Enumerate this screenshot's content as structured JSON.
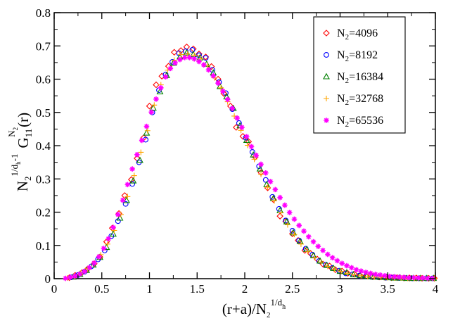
{
  "chart_data": {
    "type": "scatter",
    "title": "",
    "xlabel": {
      "main": "(r+a)/N",
      "sub": "2",
      "sup_main": "1/d",
      "sup_sub": "h"
    },
    "ylabel": {
      "base": "N",
      "base_sub": "2",
      "exp_main": "1/d",
      "exp_sub": "h",
      "exp_tail": "-1",
      "G": "G",
      "G_sub": "11",
      "G_sup": "N",
      "G_sup_sub": "2",
      "tail": "(r)"
    },
    "xlim": [
      0,
      4
    ],
    "ylim": [
      0,
      0.8
    ],
    "x_ticks": [
      0,
      0.5,
      1,
      1.5,
      2,
      2.5,
      3,
      3.5,
      4
    ],
    "x_tick_labels": [
      "0",
      "0.5",
      "1",
      "1.5",
      "2",
      "2.5",
      "3",
      "3.5",
      "4"
    ],
    "y_ticks": [
      0,
      0.1,
      0.2,
      0.3,
      0.4,
      0.5,
      0.6,
      0.7,
      0.8
    ],
    "y_tick_labels": [
      "0",
      "0.1",
      "0.2",
      "0.3",
      "0.4",
      "0.5",
      "0.6",
      "0.7",
      "0.8"
    ],
    "legend_position": "top-right",
    "series": [
      {
        "name": "N2=4096",
        "label_base": "N",
        "label_sub": "2",
        "label_tail": "=4096",
        "marker": "diamond",
        "color": "#ff0000",
        "x": [
          0.16,
          0.22,
          0.29,
          0.35,
          0.42,
          0.48,
          0.55,
          0.61,
          0.68,
          0.74,
          0.81,
          0.87,
          0.94,
          1.0,
          1.07,
          1.13,
          1.2,
          1.26,
          1.33,
          1.39,
          1.46,
          1.52,
          1.59,
          1.65,
          1.72,
          1.78,
          1.85,
          1.91,
          1.98,
          2.04,
          2.11,
          2.17,
          2.24,
          2.3,
          2.37,
          2.43,
          2.5,
          2.56,
          2.63,
          2.69,
          2.76,
          2.82,
          2.89,
          2.95,
          3.02,
          3.08,
          3.15,
          3.21,
          3.28,
          3.34,
          3.41,
          3.47,
          3.54,
          3.6,
          3.67,
          3.73,
          3.8,
          3.86,
          3.93,
          3.99
        ],
        "y": [
          0.003,
          0.01,
          0.018,
          0.029,
          0.045,
          0.065,
          0.111,
          0.152,
          0.196,
          0.25,
          0.298,
          0.362,
          0.424,
          0.519,
          0.583,
          0.609,
          0.639,
          0.681,
          0.686,
          0.697,
          0.691,
          0.676,
          0.667,
          0.638,
          0.6,
          0.557,
          0.519,
          0.455,
          0.428,
          0.412,
          0.366,
          0.319,
          0.273,
          0.238,
          0.188,
          0.172,
          0.135,
          0.115,
          0.085,
          0.076,
          0.059,
          0.044,
          0.038,
          0.027,
          0.023,
          0.016,
          0.014,
          0.01,
          0.008,
          0.006,
          0.005,
          0.004,
          0.003,
          0.003,
          0.002,
          0.002,
          0.002,
          0.001,
          0.001,
          0.001
        ]
      },
      {
        "name": "N2=8192",
        "label_base": "N",
        "label_sub": "2",
        "label_tail": "=8192",
        "marker": "circle",
        "color": "#0000ff",
        "x": [
          0.18,
          0.25,
          0.32,
          0.39,
          0.46,
          0.53,
          0.6,
          0.67,
          0.75,
          0.82,
          0.89,
          0.96,
          1.03,
          1.1,
          1.17,
          1.24,
          1.31,
          1.38,
          1.45,
          1.52,
          1.59,
          1.66,
          1.73,
          1.8,
          1.87,
          1.94,
          2.01,
          2.08,
          2.15,
          2.22,
          2.29,
          2.36,
          2.43,
          2.5,
          2.57,
          2.64,
          2.71,
          2.78,
          2.85,
          2.92,
          2.99,
          3.06,
          3.13,
          3.2,
          3.27,
          3.34,
          3.41,
          3.48,
          3.55,
          3.62,
          3.69,
          3.76,
          3.83,
          3.9,
          3.97
        ],
        "y": [
          0.004,
          0.011,
          0.021,
          0.037,
          0.058,
          0.085,
          0.128,
          0.173,
          0.225,
          0.285,
          0.35,
          0.418,
          0.5,
          0.567,
          0.614,
          0.652,
          0.678,
          0.684,
          0.688,
          0.672,
          0.664,
          0.628,
          0.591,
          0.558,
          0.51,
          0.468,
          0.424,
          0.381,
          0.338,
          0.297,
          0.246,
          0.21,
          0.175,
          0.144,
          0.115,
          0.09,
          0.072,
          0.053,
          0.042,
          0.032,
          0.024,
          0.016,
          0.013,
          0.009,
          0.007,
          0.005,
          0.004,
          0.003,
          0.003,
          0.002,
          0.002,
          0.001,
          0.001,
          0.001,
          0.001
        ]
      },
      {
        "name": "N2=16384",
        "label_base": "N",
        "label_sub": "2",
        "label_tail": "=16384",
        "marker": "triangle",
        "color": "#008000",
        "x": [
          0.2,
          0.27,
          0.34,
          0.41,
          0.48,
          0.55,
          0.62,
          0.69,
          0.76,
          0.83,
          0.9,
          0.97,
          1.04,
          1.11,
          1.18,
          1.25,
          1.32,
          1.39,
          1.46,
          1.53,
          1.6,
          1.67,
          1.74,
          1.81,
          1.88,
          1.95,
          2.02,
          2.09,
          2.16,
          2.23,
          2.3,
          2.37,
          2.44,
          2.51,
          2.58,
          2.65,
          2.72,
          2.79,
          2.86,
          2.93,
          3.0,
          3.07,
          3.14,
          3.21,
          3.28,
          3.35,
          3.42,
          3.49,
          3.56,
          3.63,
          3.7,
          3.77,
          3.84,
          3.91,
          3.98
        ],
        "y": [
          0.005,
          0.013,
          0.025,
          0.041,
          0.064,
          0.094,
          0.134,
          0.182,
          0.235,
          0.294,
          0.356,
          0.438,
          0.513,
          0.562,
          0.611,
          0.648,
          0.667,
          0.679,
          0.674,
          0.664,
          0.645,
          0.619,
          0.578,
          0.547,
          0.512,
          0.46,
          0.416,
          0.372,
          0.33,
          0.283,
          0.241,
          0.205,
          0.171,
          0.138,
          0.112,
          0.088,
          0.069,
          0.053,
          0.04,
          0.031,
          0.022,
          0.018,
          0.012,
          0.01,
          0.007,
          0.005,
          0.004,
          0.003,
          0.002,
          0.002,
          0.001,
          0.001,
          0.001,
          0.001,
          0.001
        ]
      },
      {
        "name": "N2=32768",
        "label_base": "N",
        "label_sub": "2",
        "label_tail": "=32768",
        "marker": "plus",
        "color": "#ffa500",
        "x": [
          0.14,
          0.21,
          0.28,
          0.35,
          0.42,
          0.49,
          0.56,
          0.63,
          0.7,
          0.77,
          0.84,
          0.91,
          0.98,
          1.05,
          1.12,
          1.19,
          1.26,
          1.33,
          1.4,
          1.47,
          1.54,
          1.61,
          1.68,
          1.75,
          1.82,
          1.89,
          1.96,
          2.03,
          2.1,
          2.17,
          2.24,
          2.31,
          2.38,
          2.45,
          2.52,
          2.59,
          2.66,
          2.73,
          2.8,
          2.87,
          2.94,
          3.01,
          3.08,
          3.15,
          3.22,
          3.29,
          3.36,
          3.43,
          3.5,
          3.57,
          3.64,
          3.71,
          3.78,
          3.85,
          3.92,
          3.99
        ],
        "y": [
          0.002,
          0.008,
          0.017,
          0.03,
          0.048,
          0.072,
          0.104,
          0.145,
          0.193,
          0.247,
          0.31,
          0.38,
          0.445,
          0.522,
          0.583,
          0.627,
          0.657,
          0.674,
          0.676,
          0.672,
          0.661,
          0.641,
          0.604,
          0.574,
          0.532,
          0.489,
          0.446,
          0.401,
          0.359,
          0.314,
          0.275,
          0.234,
          0.198,
          0.162,
          0.133,
          0.104,
          0.082,
          0.064,
          0.05,
          0.037,
          0.028,
          0.022,
          0.016,
          0.012,
          0.009,
          0.006,
          0.005,
          0.004,
          0.003,
          0.002,
          0.002,
          0.001,
          0.001,
          0.001,
          0.001,
          0.001
        ]
      },
      {
        "name": "N2=65536",
        "label_base": "N",
        "label_sub": "2",
        "label_tail": "=65536",
        "marker": "asterisk",
        "color": "#ff00ff",
        "x": [
          0.12,
          0.17,
          0.22,
          0.27,
          0.32,
          0.37,
          0.42,
          0.47,
          0.52,
          0.57,
          0.62,
          0.67,
          0.72,
          0.77,
          0.82,
          0.87,
          0.92,
          0.97,
          1.02,
          1.07,
          1.12,
          1.17,
          1.22,
          1.27,
          1.32,
          1.37,
          1.42,
          1.47,
          1.52,
          1.57,
          1.62,
          1.67,
          1.72,
          1.77,
          1.82,
          1.87,
          1.92,
          1.97,
          2.02,
          2.07,
          2.12,
          2.17,
          2.22,
          2.27,
          2.32,
          2.37,
          2.42,
          2.47,
          2.52,
          2.57,
          2.62,
          2.67,
          2.72,
          2.77,
          2.82,
          2.87,
          2.92,
          2.97,
          3.02,
          3.07,
          3.12,
          3.17,
          3.22,
          3.27,
          3.32,
          3.37,
          3.42,
          3.47,
          3.52,
          3.57,
          3.62,
          3.67,
          3.72,
          3.77,
          3.82,
          3.87,
          3.92,
          3.97
        ],
        "y": [
          0.001,
          0.004,
          0.008,
          0.014,
          0.022,
          0.033,
          0.047,
          0.066,
          0.091,
          0.12,
          0.154,
          0.193,
          0.236,
          0.283,
          0.33,
          0.373,
          0.416,
          0.458,
          0.501,
          0.54,
          0.574,
          0.607,
          0.632,
          0.649,
          0.659,
          0.665,
          0.665,
          0.661,
          0.653,
          0.643,
          0.628,
          0.61,
          0.588,
          0.564,
          0.539,
          0.512,
          0.483,
          0.455,
          0.427,
          0.397,
          0.371,
          0.344,
          0.318,
          0.292,
          0.268,
          0.244,
          0.221,
          0.199,
          0.179,
          0.16,
          0.143,
          0.126,
          0.111,
          0.097,
          0.085,
          0.073,
          0.063,
          0.054,
          0.046,
          0.039,
          0.033,
          0.027,
          0.023,
          0.019,
          0.016,
          0.013,
          0.011,
          0.009,
          0.007,
          0.006,
          0.005,
          0.004,
          0.003,
          0.003,
          0.002,
          0.002,
          0.001,
          0.001
        ]
      }
    ]
  }
}
